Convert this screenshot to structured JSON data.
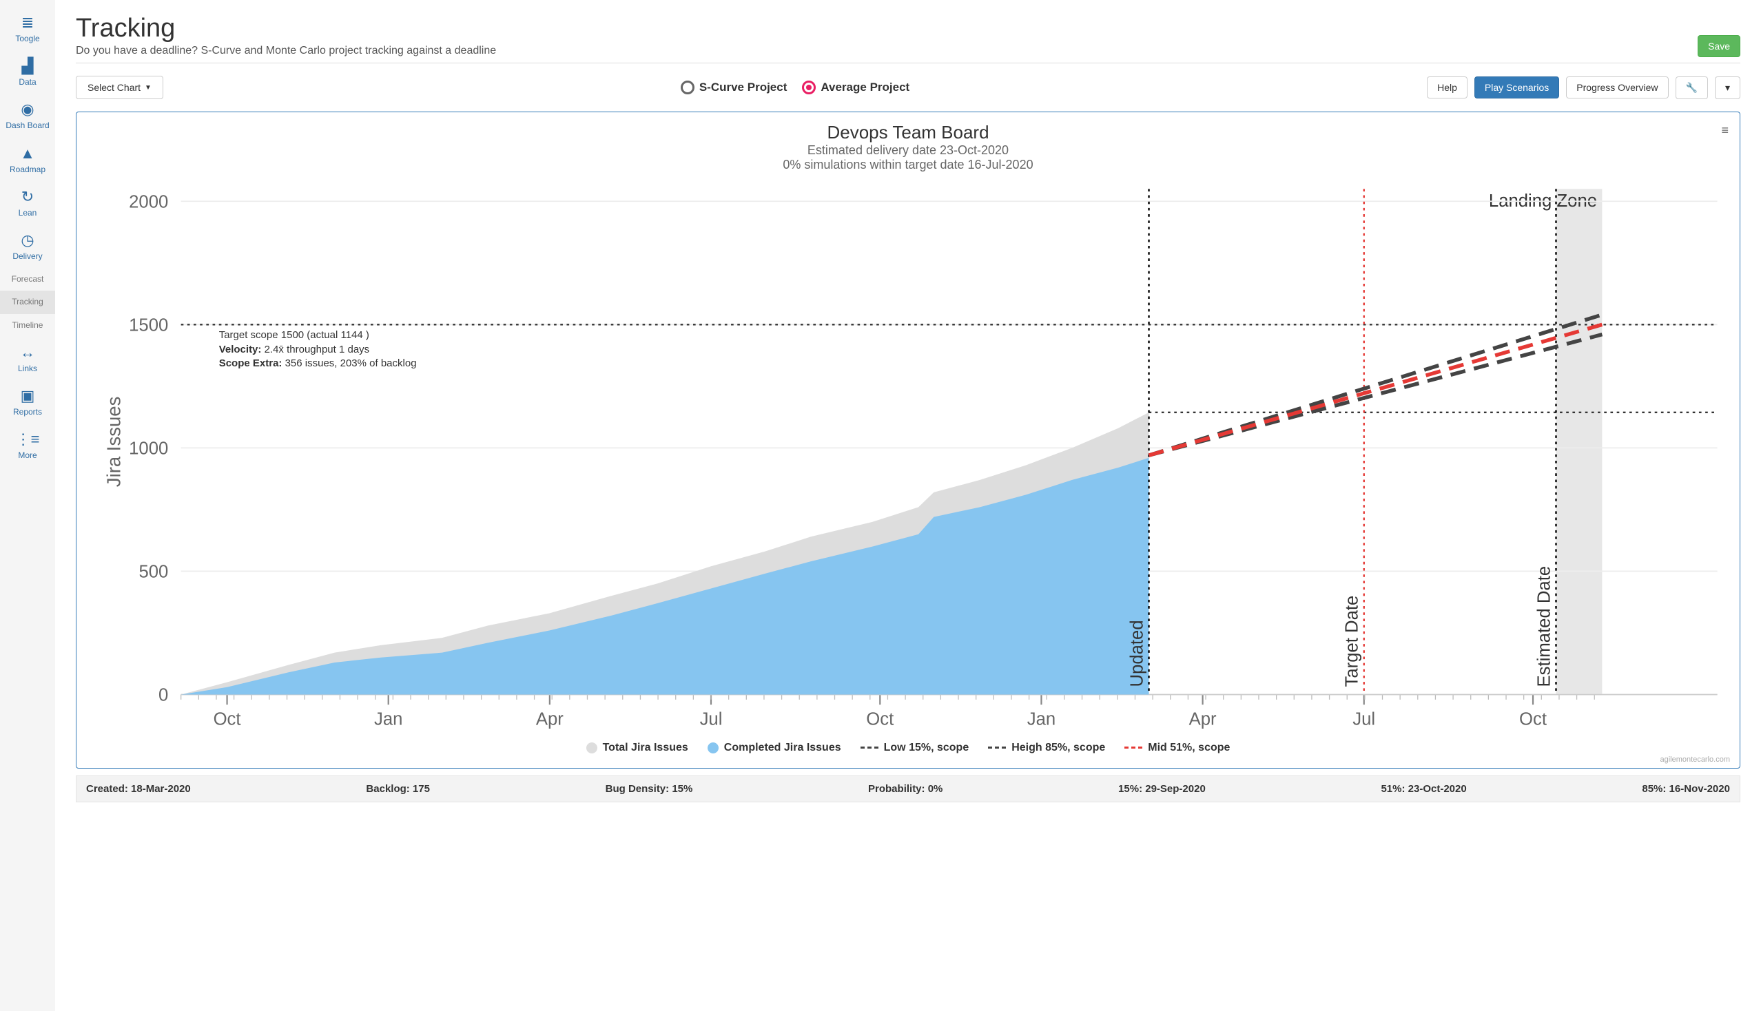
{
  "sidebar": {
    "items": [
      {
        "icon": "≣",
        "label": "Toogle"
      },
      {
        "icon": "▟",
        "label": "Data"
      },
      {
        "icon": "◉",
        "label": "Dash Board"
      },
      {
        "icon": "▲",
        "label": "Roadmap"
      },
      {
        "icon": "↻",
        "label": "Lean"
      },
      {
        "icon": "◷",
        "label": "Delivery"
      },
      {
        "icon": "",
        "label": "Forecast"
      },
      {
        "icon": "",
        "label": "Tracking"
      },
      {
        "icon": "",
        "label": "Timeline"
      },
      {
        "icon": "↔",
        "label": "Links"
      },
      {
        "icon": "▣",
        "label": "Reports"
      },
      {
        "icon": "⋮≡",
        "label": "More"
      }
    ],
    "active_index": 7
  },
  "header": {
    "title": "Tracking",
    "subtitle": "Do you have a deadline? S-Curve and Monte Carlo project tracking against a deadline",
    "save_label": "Save"
  },
  "toolbar": {
    "select_chart_label": "Select Chart",
    "radio_scurve": "S-Curve Project",
    "radio_average": "Average Project",
    "radio_selected": "average",
    "help_label": "Help",
    "play_label": "Play Scenarios",
    "progress_label": "Progress Overview"
  },
  "chart": {
    "title": "Devops Team Board",
    "subtitle1": "Estimated delivery date 23-Oct-2020",
    "subtitle2": "0% simulations within target date 16-Jul-2020",
    "y_axis_label": "Jira Issues",
    "y_ticks": [
      0,
      500,
      1000,
      1500,
      2000
    ],
    "ylim": [
      0,
      2050
    ],
    "x_ticks": [
      {
        "label": "Oct",
        "t": 0.03
      },
      {
        "label": "Jan",
        "t": 0.135
      },
      {
        "label": "Apr",
        "t": 0.24
      },
      {
        "label": "Jul",
        "t": 0.345
      },
      {
        "label": "Oct",
        "t": 0.455
      },
      {
        "label": "Jan",
        "t": 0.56
      },
      {
        "label": "Apr",
        "t": 0.665
      },
      {
        "label": "Jul",
        "t": 0.77
      },
      {
        "label": "Oct",
        "t": 0.88
      }
    ],
    "x_minor_step": 0.0115,
    "completed_color": "#86c5f0",
    "total_color": "#dddddd",
    "grid_color": "#ededed",
    "background_color": "#ffffff",
    "landing_zone_color": "#e7e7e7",
    "completed_series": [
      {
        "t": 0.0,
        "v": 0
      },
      {
        "t": 0.03,
        "v": 30
      },
      {
        "t": 0.07,
        "v": 90
      },
      {
        "t": 0.1,
        "v": 130
      },
      {
        "t": 0.13,
        "v": 150
      },
      {
        "t": 0.17,
        "v": 170
      },
      {
        "t": 0.2,
        "v": 210
      },
      {
        "t": 0.24,
        "v": 260
      },
      {
        "t": 0.28,
        "v": 320
      },
      {
        "t": 0.31,
        "v": 370
      },
      {
        "t": 0.345,
        "v": 430
      },
      {
        "t": 0.38,
        "v": 490
      },
      {
        "t": 0.41,
        "v": 540
      },
      {
        "t": 0.45,
        "v": 600
      },
      {
        "t": 0.48,
        "v": 650
      },
      {
        "t": 0.49,
        "v": 720
      },
      {
        "t": 0.52,
        "v": 760
      },
      {
        "t": 0.55,
        "v": 810
      },
      {
        "t": 0.58,
        "v": 870
      },
      {
        "t": 0.61,
        "v": 920
      },
      {
        "t": 0.63,
        "v": 960
      }
    ],
    "total_series": [
      {
        "t": 0.0,
        "v": 0
      },
      {
        "t": 0.03,
        "v": 50
      },
      {
        "t": 0.07,
        "v": 120
      },
      {
        "t": 0.1,
        "v": 170
      },
      {
        "t": 0.13,
        "v": 200
      },
      {
        "t": 0.17,
        "v": 230
      },
      {
        "t": 0.2,
        "v": 280
      },
      {
        "t": 0.24,
        "v": 330
      },
      {
        "t": 0.28,
        "v": 400
      },
      {
        "t": 0.31,
        "v": 450
      },
      {
        "t": 0.345,
        "v": 520
      },
      {
        "t": 0.38,
        "v": 580
      },
      {
        "t": 0.41,
        "v": 640
      },
      {
        "t": 0.45,
        "v": 700
      },
      {
        "t": 0.48,
        "v": 760
      },
      {
        "t": 0.49,
        "v": 820
      },
      {
        "t": 0.52,
        "v": 870
      },
      {
        "t": 0.55,
        "v": 930
      },
      {
        "t": 0.58,
        "v": 1000
      },
      {
        "t": 0.61,
        "v": 1080
      },
      {
        "t": 0.63,
        "v": 1144
      }
    ],
    "updated_t": 0.63,
    "updated_label": "Updated",
    "target_t": 0.77,
    "target_label": "Target Date",
    "estimated_t": 0.895,
    "estimated_label": "Estimated Date",
    "landing_zone_start_t": 0.895,
    "landing_zone_end_t": 0.925,
    "landing_zone_label": "Landing Zone",
    "scope_line_v": 1500,
    "current_line_v": 1144,
    "forecast_lines": [
      {
        "name": "low",
        "color": "#444444",
        "start": {
          "t": 0.63,
          "v": 970
        },
        "end": {
          "t": 0.925,
          "v": 1460
        }
      },
      {
        "name": "high",
        "color": "#444444",
        "start": {
          "t": 0.63,
          "v": 970
        },
        "end": {
          "t": 0.925,
          "v": 1540
        }
      },
      {
        "name": "mid",
        "color": "#e53935",
        "start": {
          "t": 0.63,
          "v": 970
        },
        "end": {
          "t": 0.925,
          "v": 1500
        }
      }
    ],
    "annotation": {
      "line1": "Target scope 1500 (actual 1144 )",
      "line2a": "Velocity:",
      "line2b": " 2.4x̄ throughput 1 days",
      "line3a": "Scope Extra:",
      "line3b": " 356 issues, 203% of backlog"
    },
    "legend": [
      {
        "type": "swatch",
        "color": "#dddddd",
        "label": "Total Jira Issues"
      },
      {
        "type": "swatch",
        "color": "#86c5f0",
        "label": "Completed Jira Issues"
      },
      {
        "type": "dash",
        "color": "#444444",
        "label": "Low 15%, scope"
      },
      {
        "type": "dash",
        "color": "#444444",
        "label": "Heigh 85%, scope"
      },
      {
        "type": "dash",
        "color": "#e53935",
        "label": "Mid 51%, scope"
      }
    ],
    "watermark": "agilemontecarlo.com"
  },
  "footer": {
    "created": "Created: 18-Mar-2020",
    "backlog": "Backlog: 175",
    "bug_density": "Bug Density: 15%",
    "probability": "Probability: 0%",
    "p15": "15%: 29-Sep-2020",
    "p51": "51%: 23-Oct-2020",
    "p85": "85%: 16-Nov-2020"
  }
}
